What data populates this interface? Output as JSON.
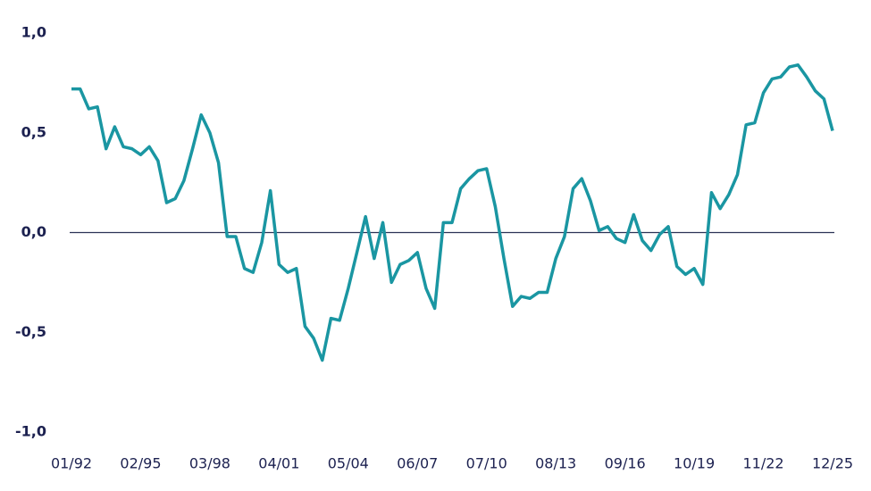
{
  "chart_data": {
    "type": "line",
    "categories": [
      "01/92",
      null,
      null,
      null,
      null,
      null,
      null,
      null,
      "02/95",
      null,
      null,
      null,
      null,
      null,
      null,
      null,
      "03/98",
      null,
      null,
      null,
      null,
      null,
      null,
      null,
      "04/01",
      null,
      null,
      null,
      null,
      null,
      null,
      null,
      "05/04",
      null,
      null,
      null,
      null,
      null,
      null,
      null,
      "06/07",
      null,
      null,
      null,
      null,
      null,
      null,
      null,
      "07/10",
      null,
      null,
      null,
      null,
      null,
      null,
      null,
      "08/13",
      null,
      null,
      null,
      null,
      null,
      null,
      null,
      "09/16",
      null,
      null,
      null,
      null,
      null,
      null,
      null,
      "10/19",
      null,
      null,
      null,
      null,
      null,
      null,
      null,
      "11/22",
      null,
      null,
      null,
      null,
      null,
      null,
      null,
      "12/25"
    ],
    "series": [
      {
        "color": "#1a96a2",
        "values": [
          0.72,
          0.72,
          0.62,
          0.63,
          0.42,
          0.53,
          0.43,
          0.42,
          0.39,
          0.43,
          0.36,
          0.15,
          0.17,
          0.26,
          0.42,
          0.59,
          0.5,
          0.35,
          -0.02,
          -0.02,
          -0.18,
          -0.2,
          -0.05,
          0.21,
          -0.16,
          -0.2,
          -0.18,
          -0.47,
          -0.53,
          -0.64,
          -0.43,
          -0.44,
          -0.28,
          -0.1,
          0.08,
          -0.13,
          0.05,
          -0.25,
          -0.16,
          -0.14,
          -0.1,
          -0.28,
          -0.38,
          0.05,
          0.05,
          0.22,
          0.27,
          0.31,
          0.32,
          0.13,
          -0.13,
          -0.37,
          -0.32,
          -0.33,
          -0.3,
          -0.3,
          -0.13,
          -0.02,
          0.22,
          0.27,
          0.16,
          0.01,
          0.03,
          -0.03,
          -0.05,
          0.09,
          -0.04,
          -0.09,
          -0.01,
          0.03,
          -0.17,
          -0.21,
          -0.18,
          -0.26,
          0.2,
          0.12,
          0.19,
          0.29,
          0.54,
          0.55,
          0.7,
          0.77,
          0.78,
          0.83,
          0.84,
          0.78,
          0.71,
          0.67,
          0.51
        ]
      }
    ],
    "ylim": [
      -1,
      1
    ],
    "yticks": [
      {
        "value": 1,
        "label": "1,0"
      },
      {
        "value": 0.5,
        "label": "0,5"
      },
      {
        "value": 0,
        "label": "0,0"
      },
      {
        "value": -0.5,
        "label": "-0,5"
      },
      {
        "value": -1,
        "label": "-1,0"
      }
    ],
    "zero_line_color": "#2b3256"
  }
}
